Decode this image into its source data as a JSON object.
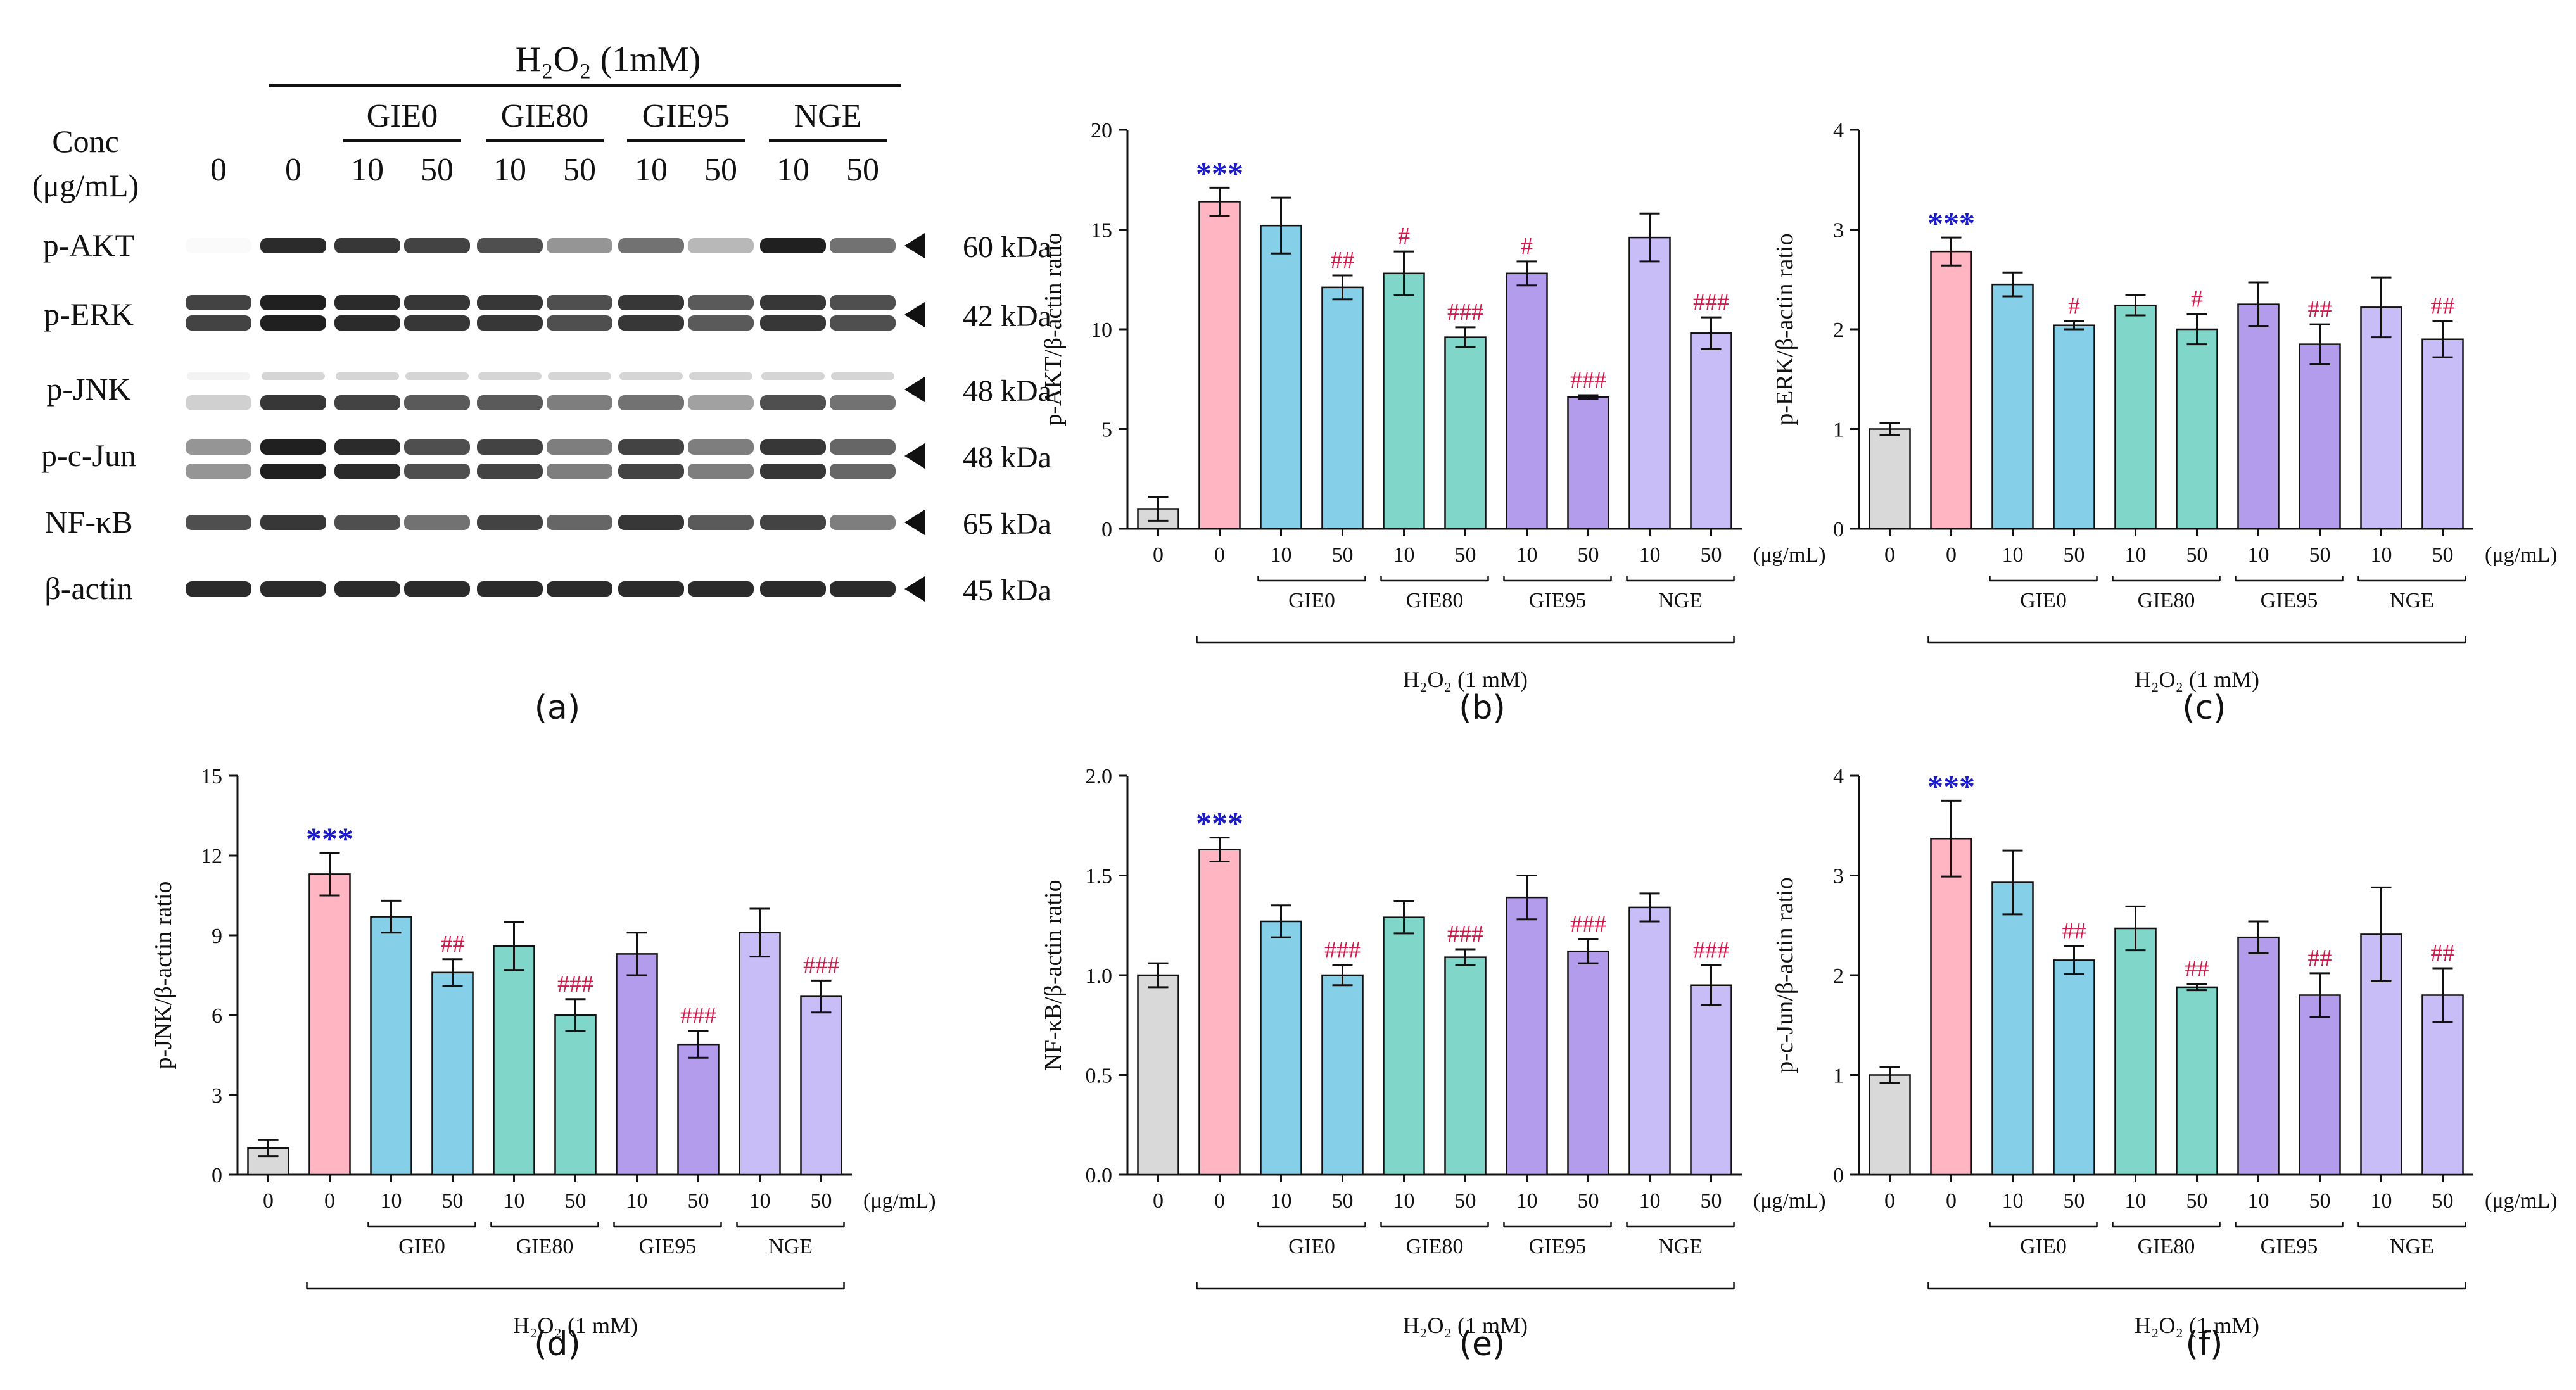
{
  "colors": {
    "bar_control": "#d9d9d9",
    "bar_h2o2": "#ffb5c2",
    "bar_gie0": "#86cfe9",
    "bar_gie80": "#7fd6c9",
    "bar_gie95": "#b39ceb",
    "bar_nge": "#c9bdf8",
    "sig_vs_control": "#1a1ac8",
    "sig_vs_h2o2": "#d2194a",
    "ink": "#111111",
    "band": "#141414"
  },
  "blot": {
    "panel_label": "(a)",
    "treatment_label": "H₂O₂ (1mM)",
    "conc_label_1": "Conc",
    "conc_label_2": "(μg/mL)",
    "groups": [
      "GIE0",
      "GIE80",
      "GIE95",
      "NGE"
    ],
    "lane_concs": [
      "0",
      "0",
      "10",
      "50",
      "10",
      "50",
      "10",
      "50",
      "10",
      "50"
    ],
    "proteins": [
      "p-AKT",
      "p-ERK",
      "p-JNK",
      "p-c-Jun",
      "NF-κB",
      "β-actin"
    ],
    "sizes": [
      "60 kDa",
      "42 kDa",
      "48 kDa",
      "48 kDa",
      "65 kDa",
      "45 kDa"
    ]
  },
  "common": {
    "x_ticks": [
      "0",
      "0",
      "10",
      "50",
      "10",
      "50",
      "10",
      "50",
      "10",
      "50"
    ],
    "unit": "(μg/mL)",
    "groups": [
      "GIE0",
      "GIE80",
      "GIE95",
      "NGE"
    ],
    "treatment": "H₂O₂ (1 mM)"
  },
  "chart_data": [
    {
      "type": "bar",
      "panel": "(b)",
      "ylabel": "p-AKT/β-actin ratio",
      "ylim": [
        0,
        20
      ],
      "yticks": [
        "0",
        "5",
        "10",
        "15",
        "20"
      ],
      "categories": [
        "0",
        "0",
        "10",
        "50",
        "10",
        "50",
        "10",
        "50",
        "10",
        "50"
      ],
      "values": [
        1.0,
        16.4,
        15.2,
        12.1,
        12.8,
        9.6,
        12.8,
        6.6,
        14.6,
        9.8
      ],
      "errors": [
        0.6,
        0.7,
        1.4,
        0.6,
        1.1,
        0.5,
        0.6,
        0.1,
        1.2,
        0.8
      ],
      "sig": [
        "",
        "***",
        "",
        "##",
        "#",
        "###",
        "#",
        "###",
        "",
        "###"
      ]
    },
    {
      "type": "bar",
      "panel": "(c)",
      "ylabel": "p-ERK/β-actin ratio",
      "ylim": [
        0,
        4
      ],
      "yticks": [
        "0",
        "1",
        "2",
        "3",
        "4"
      ],
      "categories": [
        "0",
        "0",
        "10",
        "50",
        "10",
        "50",
        "10",
        "50",
        "10",
        "50"
      ],
      "values": [
        1.0,
        2.78,
        2.45,
        2.04,
        2.24,
        2.0,
        2.25,
        1.85,
        2.22,
        1.9
      ],
      "errors": [
        0.06,
        0.14,
        0.12,
        0.04,
        0.1,
        0.15,
        0.22,
        0.2,
        0.3,
        0.18
      ],
      "sig": [
        "",
        "***",
        "",
        "#",
        "",
        "#",
        "",
        "##",
        "",
        "##"
      ]
    },
    {
      "type": "bar",
      "panel": "(d)",
      "ylabel": "p-JNK/β-actin ratio",
      "ylim": [
        0,
        15
      ],
      "yticks": [
        "0",
        "3",
        "6",
        "9",
        "12",
        "15"
      ],
      "categories": [
        "0",
        "0",
        "10",
        "50",
        "10",
        "50",
        "10",
        "50",
        "10",
        "50"
      ],
      "values": [
        1.0,
        11.3,
        9.7,
        7.6,
        8.6,
        6.0,
        8.3,
        4.9,
        9.1,
        6.7
      ],
      "errors": [
        0.3,
        0.8,
        0.6,
        0.5,
        0.9,
        0.6,
        0.8,
        0.5,
        0.9,
        0.6
      ],
      "sig": [
        "",
        "***",
        "",
        "##",
        "",
        "###",
        "",
        "###",
        "",
        "###"
      ]
    },
    {
      "type": "bar",
      "panel": "(e)",
      "ylabel": "NF-κB/β-actin ratio",
      "ylim": [
        0,
        2.0
      ],
      "yticks": [
        "0.0",
        "0.5",
        "1.0",
        "1.5",
        "2.0"
      ],
      "categories": [
        "0",
        "0",
        "10",
        "50",
        "10",
        "50",
        "10",
        "50",
        "10",
        "50"
      ],
      "values": [
        1.0,
        1.63,
        1.27,
        1.0,
        1.29,
        1.09,
        1.39,
        1.12,
        1.34,
        0.95
      ],
      "errors": [
        0.06,
        0.06,
        0.08,
        0.05,
        0.08,
        0.04,
        0.11,
        0.06,
        0.07,
        0.1
      ],
      "sig": [
        "",
        "***",
        "",
        "###",
        "",
        "###",
        "",
        "###",
        "",
        "###"
      ]
    },
    {
      "type": "bar",
      "panel": "(f)",
      "ylabel": "p-c-Jun/β-actin ratio",
      "ylim": [
        0,
        4
      ],
      "yticks": [
        "0",
        "1",
        "2",
        "3",
        "4"
      ],
      "categories": [
        "0",
        "0",
        "10",
        "50",
        "10",
        "50",
        "10",
        "50",
        "10",
        "50"
      ],
      "values": [
        1.0,
        3.37,
        2.93,
        2.15,
        2.47,
        1.88,
        2.38,
        1.8,
        2.41,
        1.8
      ],
      "errors": [
        0.08,
        0.38,
        0.32,
        0.14,
        0.22,
        0.03,
        0.16,
        0.22,
        0.47,
        0.27
      ],
      "sig": [
        "",
        "***",
        "",
        "##",
        "",
        "##",
        "",
        "##",
        "",
        "##"
      ]
    }
  ]
}
